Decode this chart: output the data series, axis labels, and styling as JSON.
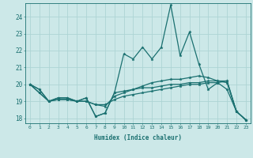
{
  "xlabel": "Humidex (Indice chaleur)",
  "bg_color": "#cce8e8",
  "grid_color": "#add4d4",
  "line_color": "#1a7070",
  "xlim": [
    -0.5,
    23.5
  ],
  "ylim": [
    17.7,
    24.8
  ],
  "yticks": [
    18,
    19,
    20,
    21,
    22,
    23,
    24
  ],
  "xticks": [
    0,
    1,
    2,
    3,
    4,
    5,
    6,
    7,
    8,
    9,
    10,
    11,
    12,
    13,
    14,
    15,
    16,
    17,
    18,
    19,
    20,
    21,
    22,
    23
  ],
  "series": [
    [
      20.0,
      19.7,
      19.0,
      19.2,
      19.2,
      19.0,
      19.2,
      18.1,
      18.3,
      19.5,
      21.8,
      21.5,
      22.2,
      21.5,
      22.2,
      24.7,
      21.7,
      23.1,
      21.2,
      19.7,
      20.1,
      19.7,
      18.4,
      17.9
    ],
    [
      20.0,
      19.7,
      19.0,
      19.2,
      19.2,
      19.0,
      19.2,
      18.1,
      18.3,
      19.5,
      19.6,
      19.7,
      19.8,
      19.8,
      19.9,
      20.0,
      20.0,
      20.1,
      20.1,
      20.2,
      20.2,
      20.2,
      18.4,
      17.9
    ],
    [
      20.0,
      19.5,
      19.0,
      19.1,
      19.1,
      19.0,
      19.0,
      18.8,
      18.8,
      19.1,
      19.3,
      19.4,
      19.5,
      19.6,
      19.7,
      19.8,
      19.9,
      20.0,
      20.0,
      20.1,
      20.1,
      20.2,
      18.4,
      17.9
    ],
    [
      20.0,
      19.5,
      19.0,
      19.1,
      19.1,
      19.0,
      19.0,
      18.8,
      18.7,
      19.3,
      19.5,
      19.7,
      19.9,
      20.1,
      20.2,
      20.3,
      20.3,
      20.4,
      20.5,
      20.4,
      20.2,
      20.1,
      18.4,
      17.9
    ]
  ]
}
